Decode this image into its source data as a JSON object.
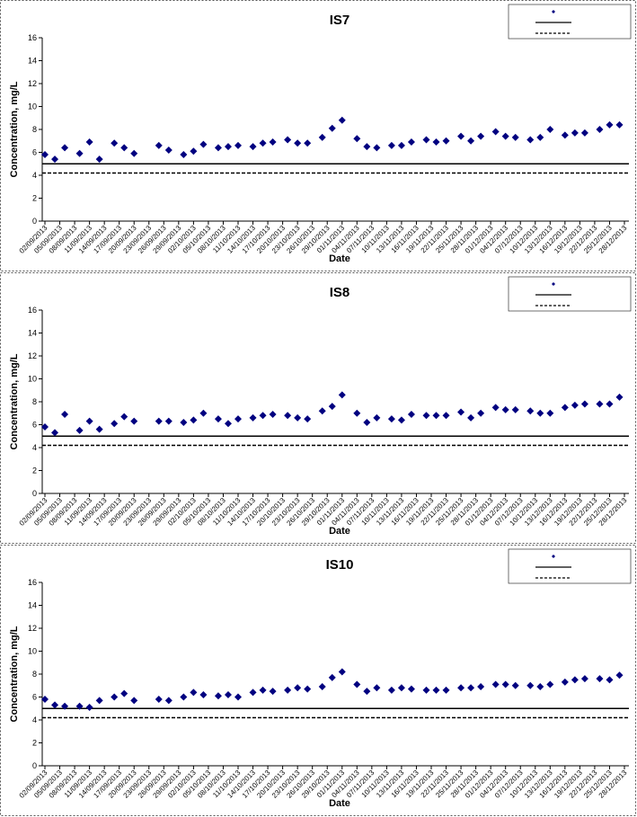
{
  "chart_data": [
    {
      "type": "scatter",
      "title": "IS7",
      "x_label": "Date",
      "y_label": "Concentration, mg/L",
      "color": "#000080",
      "marker": "diamond",
      "x": [
        "02/09/2013",
        "04/09/2013",
        "06/09/2013",
        "09/09/2013",
        "11/09/2013",
        "13/09/2013",
        "16/09/2013",
        "18/09/2013",
        "20/09/2013",
        "25/09/2013",
        "27/09/2013",
        "30/09/2013",
        "02/10/2013",
        "04/10/2013",
        "07/10/2013",
        "09/10/2013",
        "11/10/2013",
        "14/10/2013",
        "16/10/2013",
        "18/10/2013",
        "21/10/2013",
        "23/10/2013",
        "25/10/2013",
        "28/10/2013",
        "30/10/2013",
        "01/11/2013",
        "04/11/2013",
        "06/11/2013",
        "08/11/2013",
        "11/11/2013",
        "13/11/2013",
        "15/11/2013",
        "18/11/2013",
        "20/11/2013",
        "22/11/2013",
        "25/11/2013",
        "27/11/2013",
        "29/11/2013",
        "02/12/2013",
        "04/12/2013",
        "06/12/2013",
        "09/12/2013",
        "11/12/2013",
        "13/12/2013",
        "16/12/2013",
        "18/12/2013",
        "20/12/2013",
        "23/12/2013",
        "25/12/2013",
        "27/12/2013"
      ],
      "values": [
        5.8,
        5.4,
        6.4,
        5.9,
        6.9,
        5.4,
        6.8,
        6.4,
        5.9,
        6.6,
        6.2,
        5.8,
        6.1,
        6.7,
        6.4,
        6.5,
        6.6,
        6.5,
        6.8,
        6.9,
        7.1,
        6.8,
        6.8,
        7.3,
        8.1,
        8.8,
        7.2,
        6.5,
        6.4,
        6.6,
        6.6,
        6.9,
        7.1,
        6.9,
        7.0,
        7.4,
        7.0,
        7.4,
        7.8,
        7.4,
        7.3,
        7.1,
        7.3,
        8.0,
        7.5,
        7.7,
        7.7,
        8.0,
        8.4,
        8.4
      ],
      "reference_lines": [
        {
          "value": 5,
          "style": "solid"
        },
        {
          "value": 4.2,
          "style": "dashed"
        }
      ],
      "xlim": [
        "02/09/2013",
        "28/12/2013"
      ],
      "xticks": [
        "02/09/2013",
        "05/09/2013",
        "08/09/2013",
        "11/09/2013",
        "14/09/2013",
        "17/09/2013",
        "20/09/2013",
        "23/09/2013",
        "26/09/2013",
        "29/09/2013",
        "02/10/2013",
        "05/10/2013",
        "08/10/2013",
        "11/10/2013",
        "14/10/2013",
        "17/10/2013",
        "20/10/2013",
        "23/10/2013",
        "26/10/2013",
        "29/10/2013",
        "01/11/2013",
        "04/11/2013",
        "07/11/2013",
        "10/11/2013",
        "13/11/2013",
        "16/11/2013",
        "19/11/2013",
        "22/11/2013",
        "25/11/2013",
        "28/11/2013",
        "01/12/2013",
        "04/12/2013",
        "07/12/2013",
        "10/12/2013",
        "13/12/2013",
        "16/12/2013",
        "19/12/2013",
        "22/12/2013",
        "25/12/2013",
        "28/12/2013"
      ],
      "ylim": [
        0,
        16
      ],
      "yticks": [
        0,
        2,
        4,
        6,
        8,
        10,
        12,
        14,
        16
      ]
    },
    {
      "type": "scatter",
      "title": "IS8",
      "x_label": "Date",
      "y_label": "Concentration, mg/L",
      "color": "#000080",
      "marker": "diamond",
      "x": [
        "02/09/2013",
        "04/09/2013",
        "06/09/2013",
        "09/09/2013",
        "11/09/2013",
        "13/09/2013",
        "16/09/2013",
        "18/09/2013",
        "20/09/2013",
        "25/09/2013",
        "27/09/2013",
        "30/09/2013",
        "02/10/2013",
        "04/10/2013",
        "07/10/2013",
        "09/10/2013",
        "11/10/2013",
        "14/10/2013",
        "16/10/2013",
        "18/10/2013",
        "21/10/2013",
        "23/10/2013",
        "25/10/2013",
        "28/10/2013",
        "30/10/2013",
        "01/11/2013",
        "04/11/2013",
        "06/11/2013",
        "08/11/2013",
        "11/11/2013",
        "13/11/2013",
        "15/11/2013",
        "18/11/2013",
        "20/11/2013",
        "22/11/2013",
        "25/11/2013",
        "27/11/2013",
        "29/11/2013",
        "02/12/2013",
        "04/12/2013",
        "06/12/2013",
        "09/12/2013",
        "11/12/2013",
        "13/12/2013",
        "16/12/2013",
        "18/12/2013",
        "20/12/2013",
        "23/12/2013",
        "25/12/2013",
        "27/12/2013"
      ],
      "values": [
        5.8,
        5.3,
        6.9,
        5.5,
        6.3,
        5.6,
        6.1,
        6.7,
        6.3,
        6.3,
        6.3,
        6.2,
        6.4,
        7.0,
        6.5,
        6.1,
        6.5,
        6.6,
        6.8,
        6.9,
        6.8,
        6.6,
        6.5,
        7.2,
        7.6,
        8.6,
        7.0,
        6.2,
        6.6,
        6.5,
        6.4,
        6.9,
        6.8,
        6.8,
        6.8,
        7.1,
        6.6,
        7.0,
        7.5,
        7.3,
        7.3,
        7.2,
        7.0,
        7.0,
        7.5,
        7.7,
        7.8,
        7.8,
        7.8,
        8.4
      ],
      "reference_lines": [
        {
          "value": 5,
          "style": "solid"
        },
        {
          "value": 4.2,
          "style": "dashed"
        }
      ],
      "xlim": [
        "02/09/2013",
        "28/12/2013"
      ],
      "xticks": [
        "02/09/2013",
        "05/09/2013",
        "08/09/2013",
        "11/09/2013",
        "14/09/2013",
        "17/09/2013",
        "20/09/2013",
        "23/09/2013",
        "26/09/2013",
        "29/09/2013",
        "02/10/2013",
        "05/10/2013",
        "08/10/2013",
        "11/10/2013",
        "14/10/2013",
        "17/10/2013",
        "20/10/2013",
        "23/10/2013",
        "26/10/2013",
        "29/10/2013",
        "01/11/2013",
        "04/11/2013",
        "07/11/2013",
        "10/11/2013",
        "13/11/2013",
        "16/11/2013",
        "19/11/2013",
        "22/11/2013",
        "25/11/2013",
        "28/11/2013",
        "01/12/2013",
        "04/12/2013",
        "07/12/2013",
        "10/12/2013",
        "13/12/2013",
        "16/12/2013",
        "19/12/2013",
        "22/12/2013",
        "25/12/2013",
        "28/12/2013"
      ],
      "ylim": [
        0,
        16
      ],
      "yticks": [
        0,
        2,
        4,
        6,
        8,
        10,
        12,
        14,
        16
      ]
    },
    {
      "type": "scatter",
      "title": "IS10",
      "x_label": "Date",
      "y_label": "Concentration, mg/L",
      "color": "#000080",
      "marker": "diamond",
      "x": [
        "02/09/2013",
        "04/09/2013",
        "06/09/2013",
        "09/09/2013",
        "11/09/2013",
        "13/09/2013",
        "16/09/2013",
        "18/09/2013",
        "20/09/2013",
        "25/09/2013",
        "27/09/2013",
        "30/09/2013",
        "02/10/2013",
        "04/10/2013",
        "07/10/2013",
        "09/10/2013",
        "11/10/2013",
        "14/10/2013",
        "16/10/2013",
        "18/10/2013",
        "21/10/2013",
        "23/10/2013",
        "25/10/2013",
        "28/10/2013",
        "30/10/2013",
        "01/11/2013",
        "04/11/2013",
        "06/11/2013",
        "08/11/2013",
        "11/11/2013",
        "13/11/2013",
        "15/11/2013",
        "18/11/2013",
        "20/11/2013",
        "22/11/2013",
        "25/11/2013",
        "27/11/2013",
        "29/11/2013",
        "02/12/2013",
        "04/12/2013",
        "06/12/2013",
        "09/12/2013",
        "11/12/2013",
        "13/12/2013",
        "16/12/2013",
        "18/12/2013",
        "20/12/2013",
        "23/12/2013",
        "25/12/2013",
        "27/12/2013"
      ],
      "values": [
        5.8,
        5.3,
        5.2,
        5.2,
        5.1,
        5.7,
        6.0,
        6.3,
        5.7,
        5.8,
        5.7,
        6.0,
        6.4,
        6.2,
        6.1,
        6.2,
        6.0,
        6.4,
        6.6,
        6.5,
        6.6,
        6.8,
        6.7,
        6.9,
        7.7,
        8.2,
        7.1,
        6.5,
        6.8,
        6.6,
        6.8,
        6.7,
        6.6,
        6.6,
        6.6,
        6.8,
        6.8,
        6.9,
        7.1,
        7.1,
        7.0,
        7.0,
        6.9,
        7.1,
        7.3,
        7.5,
        7.6,
        7.6,
        7.5,
        7.9
      ],
      "reference_lines": [
        {
          "value": 5,
          "style": "solid"
        },
        {
          "value": 4.2,
          "style": "dashed"
        }
      ],
      "xlim": [
        "02/09/2013",
        "28/12/2013"
      ],
      "xticks": [
        "02/09/2013",
        "05/09/2013",
        "08/09/2013",
        "11/09/2013",
        "14/09/2013",
        "17/09/2013",
        "20/09/2013",
        "23/09/2013",
        "26/09/2013",
        "29/09/2013",
        "02/10/2013",
        "05/10/2013",
        "08/10/2013",
        "11/10/2013",
        "14/10/2013",
        "17/10/2013",
        "20/10/2013",
        "23/10/2013",
        "26/10/2013",
        "29/10/2013",
        "01/11/2013",
        "04/11/2013",
        "07/11/2013",
        "10/11/2013",
        "13/11/2013",
        "16/11/2013",
        "19/11/2013",
        "22/11/2013",
        "25/11/2013",
        "28/11/2013",
        "01/12/2013",
        "04/12/2013",
        "07/12/2013",
        "10/12/2013",
        "13/12/2013",
        "16/12/2013",
        "19/12/2013",
        "22/12/2013",
        "25/12/2013",
        "28/12/2013"
      ],
      "ylim": [
        0,
        16
      ],
      "yticks": [
        0,
        2,
        4,
        6,
        8,
        10,
        12,
        14,
        16
      ]
    }
  ]
}
